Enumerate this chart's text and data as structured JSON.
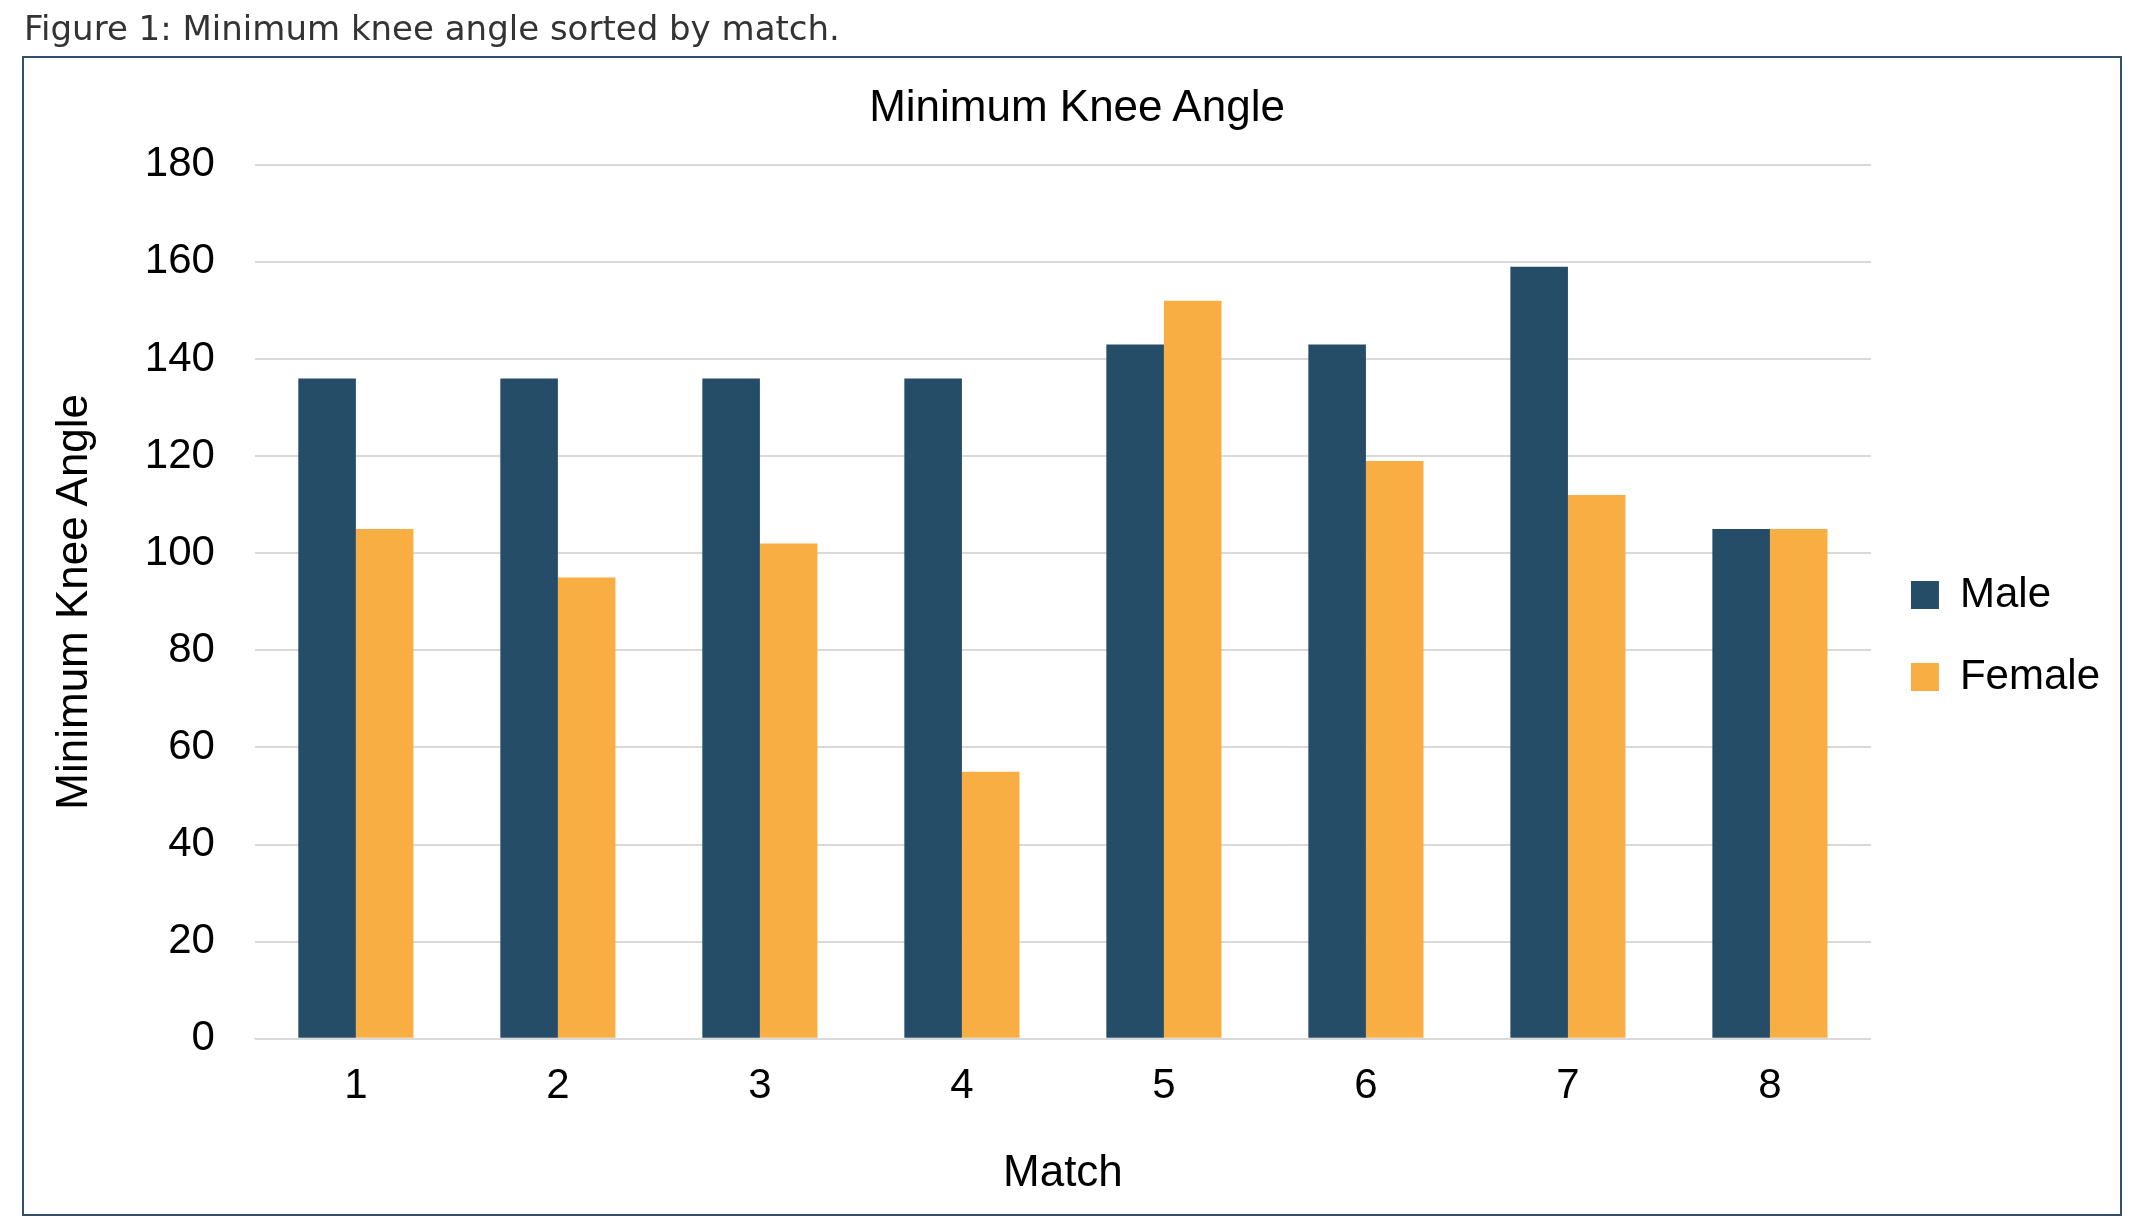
{
  "chart_data": {
    "type": "bar",
    "title": "Minimum Knee Angle",
    "xlabel": "Match",
    "ylabel": "Minimum Knee Angle",
    "annotations": [
      "Figure 1: Minimum knee angle sorted by match."
    ],
    "categories": [
      "1",
      "2",
      "3",
      "4",
      "5",
      "6",
      "7",
      "8"
    ],
    "series": [
      {
        "name": "Male",
        "color": "#254d68",
        "values": [
          136,
          136,
          136,
          136,
          143,
          143,
          159,
          105
        ]
      },
      {
        "name": "Female",
        "color": "#f9ae43",
        "values": [
          105,
          95,
          102,
          55,
          152,
          119,
          112,
          105
        ]
      }
    ],
    "ylim": [
      0,
      180
    ],
    "yticks": [
      0,
      20,
      40,
      60,
      80,
      100,
      120,
      140,
      160,
      180
    ],
    "grid": "y",
    "legend": "right"
  }
}
